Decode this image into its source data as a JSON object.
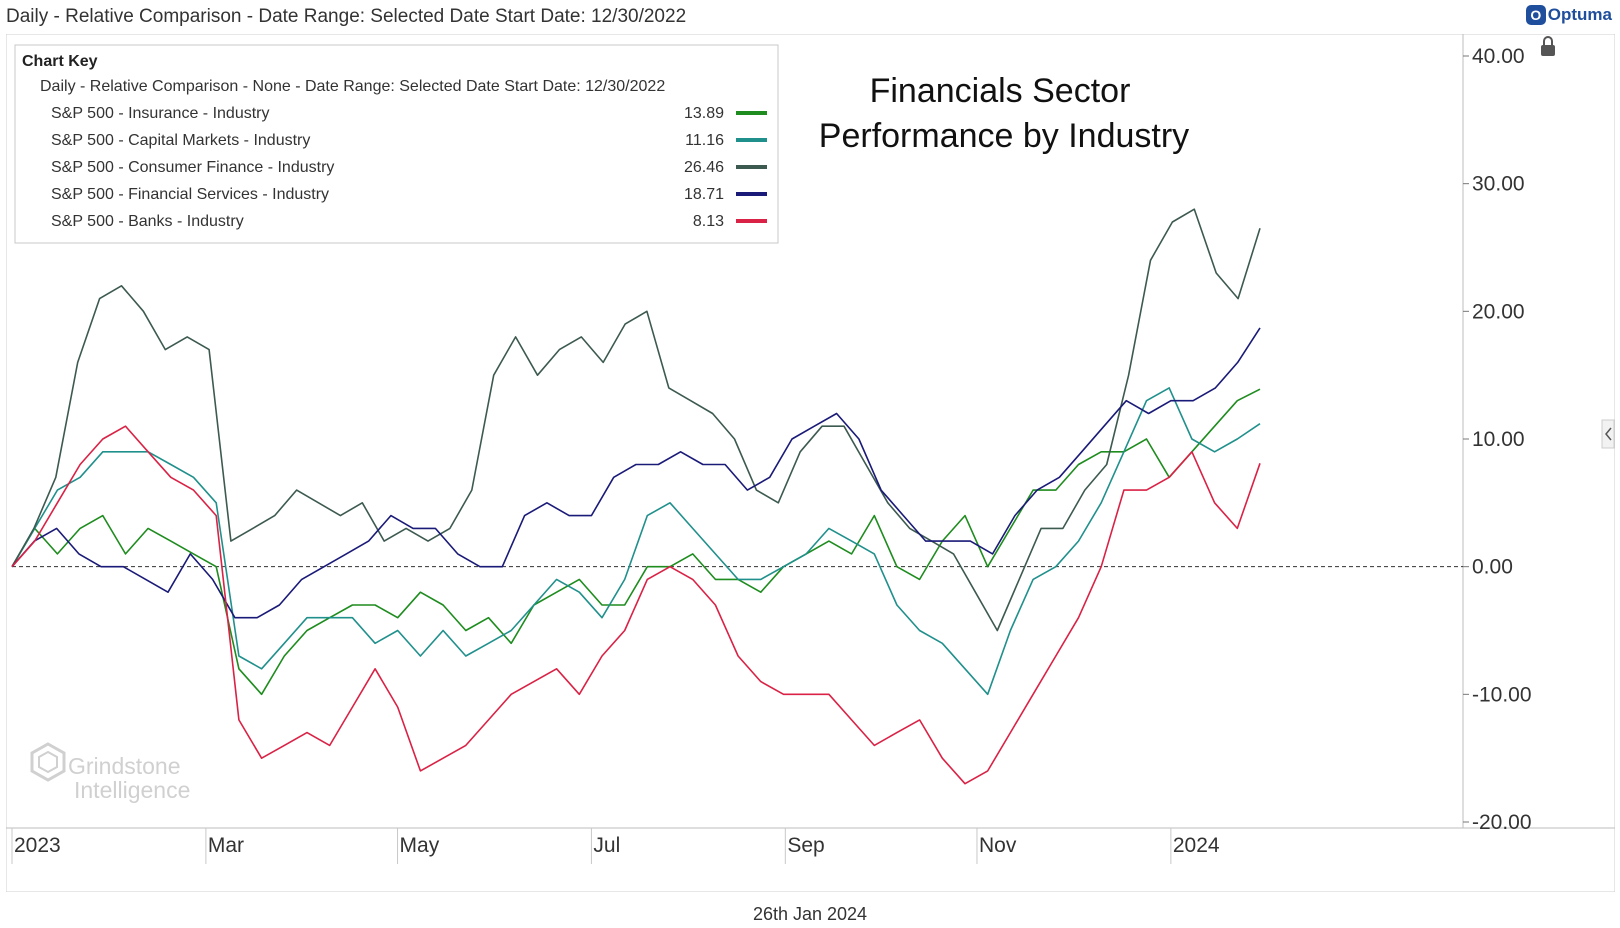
{
  "header": {
    "title": "Daily - Relative Comparison - Date Range: Selected Date  Start Date: 12/30/2022",
    "brand": "Optuma"
  },
  "footer": {
    "date": "26th Jan 2024"
  },
  "watermark": {
    "line1": "Grindstone",
    "line2": "Intelligence"
  },
  "chart_key": {
    "heading": "Chart Key",
    "subheading": "Daily - Relative Comparison - None - Date Range: Selected Date  Start Date: 12/30/2022"
  },
  "chart_data": {
    "type": "line",
    "title": "Financials Sector",
    "subtitle": "Performance by Industry",
    "ylim": [
      -20,
      40
    ],
    "yticks": [
      40,
      30,
      20,
      10,
      0,
      -10,
      -20
    ],
    "ytick_labels": [
      "40.00",
      "30.00",
      "20.00",
      "10.00",
      "0.00",
      "-10.00",
      "-20.00"
    ],
    "xlim": [
      0,
      56
    ],
    "xticks": [
      0,
      8.7,
      17.3,
      26,
      34.7,
      43.3,
      52
    ],
    "xtick_labels": [
      "2023",
      "Mar",
      "May",
      "Jul",
      "Sep",
      "Nov",
      "2024"
    ],
    "reference_line": 0,
    "series": [
      {
        "name": "S&P 500 - Insurance - Industry",
        "last": "13.89",
        "color": "#1e8c1e",
        "values": [
          0,
          3,
          1,
          3,
          4,
          1,
          3,
          2,
          1,
          0,
          -8,
          -10,
          -7,
          -5,
          -4,
          -3,
          -3,
          -4,
          -2,
          -3,
          -5,
          -4,
          -6,
          -3,
          -2,
          -1,
          -3,
          -3,
          0,
          0,
          1,
          -1,
          -1,
          -2,
          0,
          1,
          2,
          1,
          4,
          0,
          -1,
          2,
          4,
          0,
          3,
          6,
          6,
          8,
          9,
          9,
          10,
          7,
          9,
          11,
          13,
          13.9
        ]
      },
      {
        "name": "S&P 500 - Capital Markets - Industry",
        "last": "11.16",
        "color": "#20908c",
        "values": [
          0,
          3,
          6,
          7,
          9,
          9,
          9,
          8,
          7,
          5,
          -7,
          -8,
          -6,
          -4,
          -4,
          -4,
          -6,
          -5,
          -7,
          -5,
          -7,
          -6,
          -5,
          -3,
          -1,
          -2,
          -4,
          -1,
          4,
          5,
          3,
          1,
          -1,
          -1,
          0,
          1,
          3,
          2,
          1,
          -3,
          -5,
          -6,
          -8,
          -10,
          -5,
          -1,
          0,
          2,
          5,
          9,
          13,
          14,
          10,
          9,
          10,
          11.2
        ]
      },
      {
        "name": "S&P 500 - Consumer Finance - Industry",
        "last": "26.46",
        "color": "#3d5a50",
        "values": [
          0,
          3,
          7,
          16,
          21,
          22,
          20,
          17,
          18,
          17,
          2,
          3,
          4,
          6,
          5,
          4,
          5,
          2,
          3,
          2,
          3,
          6,
          15,
          18,
          15,
          17,
          18,
          16,
          19,
          20,
          14,
          13,
          12,
          10,
          6,
          5,
          9,
          11,
          11,
          8,
          5,
          3,
          2,
          1,
          -2,
          -5,
          -1,
          3,
          3,
          6,
          8,
          15,
          24,
          27,
          28,
          23,
          21,
          26.5
        ]
      },
      {
        "name": "S&P 500 - Financial Services - Industry",
        "last": "18.71",
        "color": "#1a1a78",
        "values": [
          0,
          2,
          3,
          1,
          0,
          0,
          -1,
          -2,
          1,
          -1,
          -4,
          -4,
          -3,
          -1,
          0,
          1,
          2,
          4,
          3,
          3,
          1,
          0,
          0,
          4,
          5,
          4,
          4,
          7,
          8,
          8,
          9,
          8,
          8,
          6,
          7,
          10,
          11,
          12,
          10,
          6,
          4,
          2,
          2,
          2,
          1,
          4,
          6,
          7,
          9,
          11,
          13,
          12,
          13,
          13,
          14,
          16,
          18.7
        ]
      },
      {
        "name": "S&P 500 - Banks - Industry",
        "last": "8.13",
        "color": "#d92245",
        "values": [
          0,
          2,
          5,
          8,
          10,
          11,
          9,
          7,
          6,
          4,
          -12,
          -15,
          -14,
          -13,
          -14,
          -11,
          -8,
          -11,
          -16,
          -15,
          -14,
          -12,
          -10,
          -9,
          -8,
          -10,
          -7,
          -5,
          -1,
          0,
          -1,
          -3,
          -7,
          -9,
          -10,
          -10,
          -10,
          -12,
          -14,
          -13,
          -12,
          -15,
          -17,
          -16,
          -13,
          -10,
          -7,
          -4,
          0,
          6,
          6,
          7,
          9,
          5,
          3,
          8.1
        ]
      }
    ]
  }
}
